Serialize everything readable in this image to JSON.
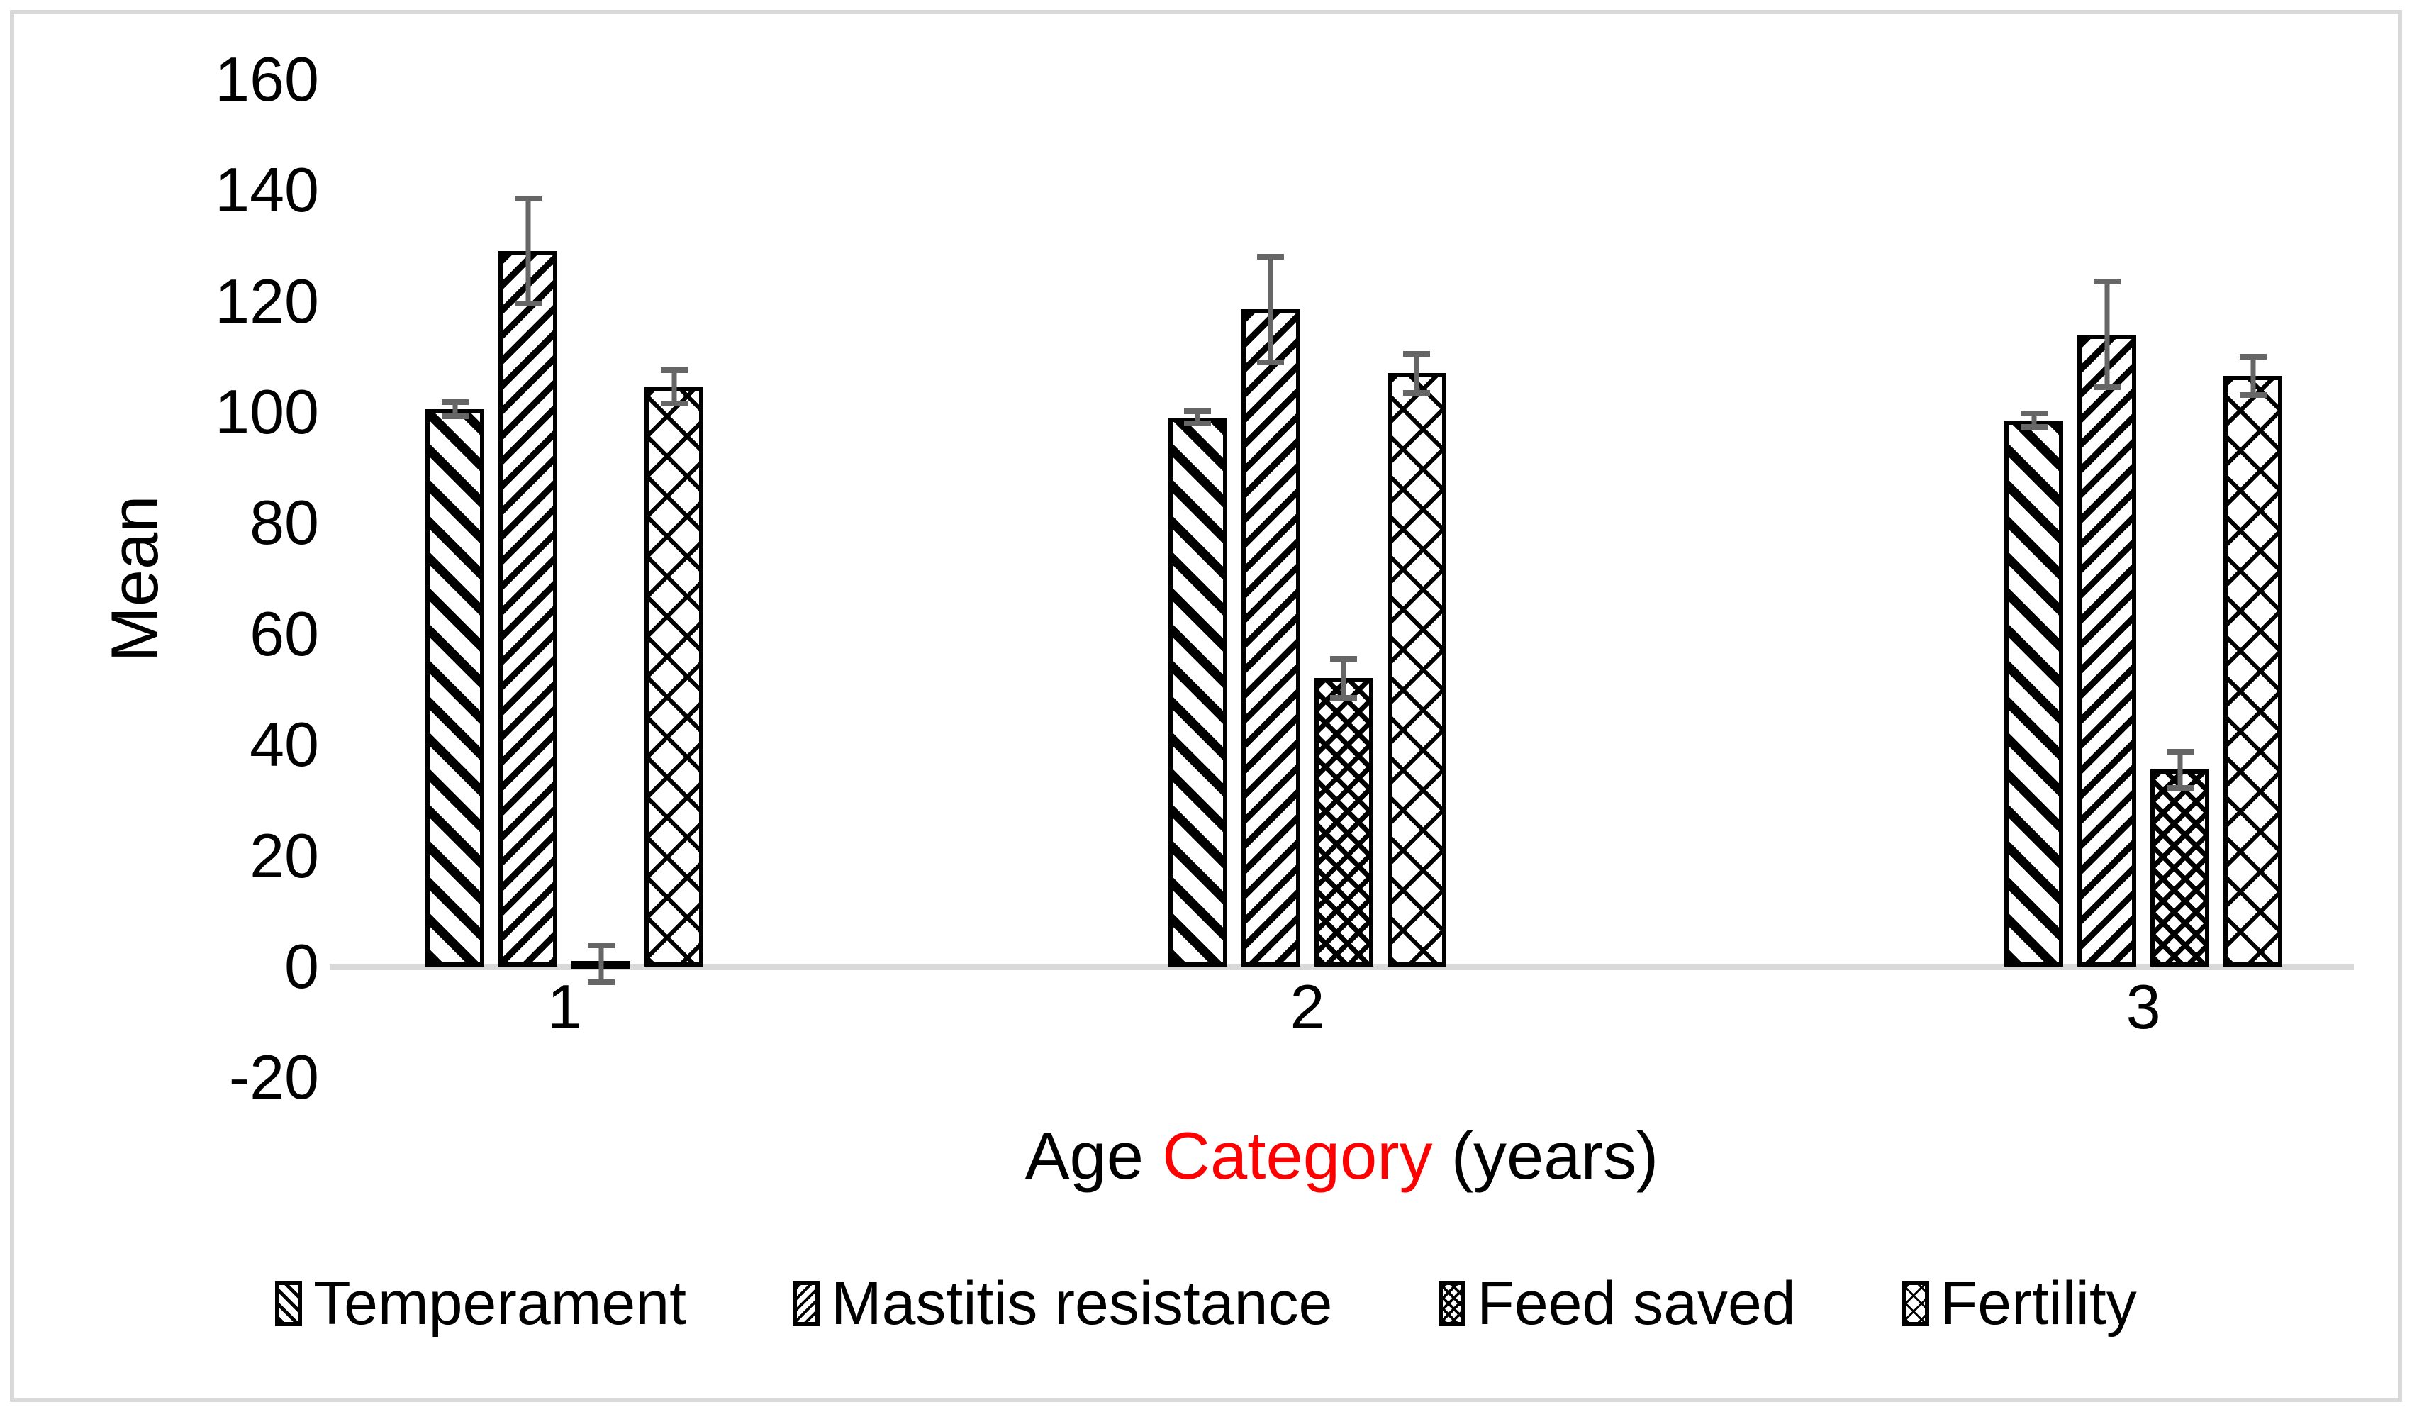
{
  "figure": {
    "border_color": "#d9d9d9",
    "background": "#ffffff",
    "error_bar_color": "#666666",
    "baseline_color": "#d9d9d9",
    "bar_outline_color": "#000000",
    "accent_red": "#ff0000"
  },
  "y_axis": {
    "title": "Mean",
    "ticks": [
      160,
      140,
      120,
      100,
      80,
      60,
      40,
      20,
      0,
      -20
    ]
  },
  "x_axis": {
    "title_parts": [
      {
        "text": "Age ",
        "color": "#000000"
      },
      {
        "text": "Category",
        "color": "#ff0000"
      },
      {
        "text": " (years)",
        "color": "#000000"
      }
    ],
    "categories": [
      "1",
      "2",
      "3"
    ]
  },
  "legend": {
    "items": [
      {
        "label": "Temperament",
        "pattern": "temperament"
      },
      {
        "label": "Mastitis resistance",
        "pattern": "mastitis"
      },
      {
        "label": "Feed saved",
        "pattern": "feed"
      },
      {
        "label": "Fertility",
        "pattern": "fertility"
      }
    ]
  },
  "chart_data": {
    "type": "bar",
    "title": "",
    "xlabel": "Age Category (years)",
    "ylabel": "Mean",
    "ylim": [
      -20,
      160
    ],
    "ytick_step": 20,
    "grid": false,
    "legend_position": "bottom",
    "error_bars": true,
    "categories": [
      "1",
      "2",
      "3"
    ],
    "series": [
      {
        "name": "Temperament",
        "pattern": "temperament",
        "values": [
          100.5,
          99,
          98.5
        ],
        "errors": [
          1.8,
          1.6,
          1.7
        ]
      },
      {
        "name": "Mastitis resistance",
        "pattern": "mastitis",
        "values": [
          129,
          118.5,
          114
        ],
        "errors": [
          10,
          10,
          10
        ]
      },
      {
        "name": "Feed saved",
        "pattern": "feed",
        "values": [
          0.5,
          52,
          35.5
        ],
        "errors": [
          3.8,
          4,
          3.8
        ]
      },
      {
        "name": "Fertility",
        "pattern": "fertility",
        "values": [
          104.5,
          107,
          106.5
        ],
        "errors": [
          3.5,
          4,
          4
        ]
      }
    ],
    "group_centers_pct": [
      11.6,
      48.3,
      89.6
    ]
  }
}
